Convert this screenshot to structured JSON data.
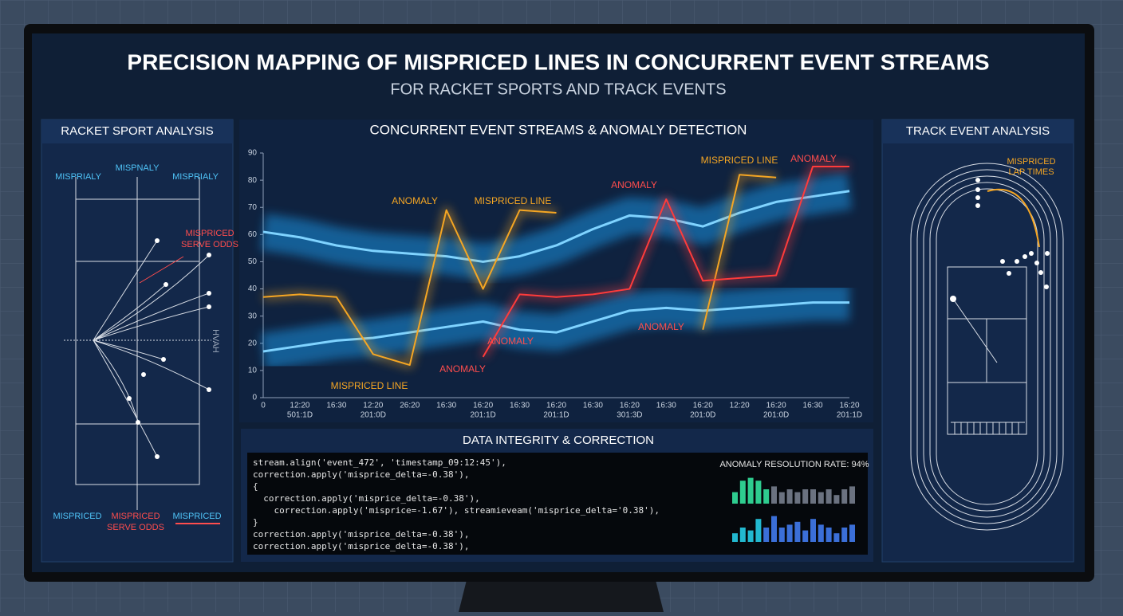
{
  "header": {
    "title": "PRECISION MAPPING OF MISPRICED LINES IN CONCURRENT EVENT STREAMS",
    "subtitle": "FOR RACKET SPORTS AND TRACK EVENTS"
  },
  "racket_panel": {
    "title": "RACKET SPORT ANALYSIS",
    "labels": [
      "MISPRIALY",
      "MISPNALY",
      "MISPRIALY",
      "MISPRICED",
      "SERVE ODDS",
      "HVAH",
      "MISPRICED",
      "MISPRICED",
      "SERVE ODDS",
      "MISPRICED"
    ]
  },
  "chart_data": {
    "type": "line",
    "title": "CONCURRENT EVENT STREAMS & ANOMALY DETECTION",
    "categories": [
      "0",
      "12:20",
      "16:30",
      "12:20",
      "26:20",
      "16:30",
      "16:20",
      "16:30",
      "16:20",
      "16:30",
      "16:20",
      "16:30",
      "16:20",
      "12:20",
      "16:20",
      "16:30",
      "16:20"
    ],
    "category_dates": [
      null,
      "501:1D",
      null,
      "201:0D",
      null,
      null,
      "201:1D",
      null,
      "201:1D",
      null,
      "301:3D",
      null,
      "201:0D",
      null,
      "201:0D",
      null,
      "201:1D"
    ],
    "ylim": [
      0,
      90
    ],
    "yticks": [
      0,
      10,
      20,
      30,
      40,
      50,
      60,
      70,
      80,
      90
    ],
    "series": [
      {
        "color": "#1ea8ff",
        "values": [
          61,
          59,
          56,
          54,
          53,
          52,
          50,
          52,
          56,
          62,
          67,
          66,
          63,
          68,
          72,
          74,
          76
        ]
      },
      {
        "color": "#1ea8ff",
        "values": [
          17,
          19,
          21,
          22,
          24,
          26,
          28,
          25,
          24,
          28,
          32,
          33,
          32,
          33,
          34,
          35,
          35
        ]
      },
      {
        "color": "#f5a623",
        "values": [
          37,
          38,
          37,
          16,
          12,
          69,
          40,
          69,
          68,
          null,
          null,
          null,
          25,
          82,
          81,
          null,
          null
        ]
      },
      {
        "color": "#ff3b3b",
        "values": [
          null,
          null,
          null,
          null,
          null,
          null,
          15,
          38,
          37,
          38,
          40,
          73,
          43,
          44,
          45,
          85,
          85
        ]
      }
    ],
    "annotations": [
      {
        "text": "ANOMALY",
        "color": "#f5a623"
      },
      {
        "text": "MISPRICED LINE",
        "color": "#f5a623"
      },
      {
        "text": "ANOMALY",
        "color": "#ff4d4d"
      },
      {
        "text": "MISPRICED LINE",
        "color": "#f5a623"
      },
      {
        "text": "ANOMALY",
        "color": "#ff4d4d"
      },
      {
        "text": "ANOMALY",
        "color": "#ff4d4d"
      },
      {
        "text": "ANOMALY",
        "color": "#ff4d4d"
      },
      {
        "text": "MISPRICED LINE",
        "color": "#f5a623"
      },
      {
        "text": "ANOMALY",
        "color": "#ff4d4d"
      }
    ]
  },
  "integrity_panel": {
    "title": "DATA INTEGRITY & CORRECTION",
    "code": [
      "stream.align('event_472', 'timestamp_09:12:45'),",
      "correction.apply('misprice_delta=-0.38'),",
      "{",
      "  correction.apply('misprice_delta=-0.38'),",
      "    correction.apply('misprice=-1.67'), streamieveam('misprice_delta='0.38'),",
      "}",
      "correction.apply('misprice_delta=-0.38'),",
      "correction.apply('misprice_delta=-0.38'),"
    ],
    "resolution_label": "ANOMALY RESOLUTION RATE: 94%",
    "bar_charts": [
      {
        "type": "bar",
        "values": [
          4,
          8,
          9,
          8,
          5,
          6,
          4,
          5,
          4,
          5,
          5,
          4,
          5,
          3,
          5,
          6
        ],
        "colors": [
          "#2ecc8f",
          "#2ecc8f",
          "#2ecc8f",
          "#2ecc8f",
          "#2ecc8f",
          "#6b7280",
          "#6b7280",
          "#6b7280",
          "#6b7280",
          "#6b7280",
          "#6b7280",
          "#6b7280",
          "#6b7280",
          "#6b7280",
          "#6b7280",
          "#6b7280"
        ]
      },
      {
        "type": "bar",
        "values": [
          3,
          5,
          4,
          8,
          5,
          9,
          5,
          6,
          7,
          4,
          8,
          6,
          5,
          3,
          5,
          6
        ],
        "colors": [
          "#22b8cf",
          "#22b8cf",
          "#22b8cf",
          "#22b8cf",
          "#3b6fd8",
          "#3b6fd8",
          "#3b6fd8",
          "#3b6fd8",
          "#3b6fd8",
          "#3b6fd8",
          "#3b6fd8",
          "#3b6fd8",
          "#3b6fd8",
          "#3b6fd8",
          "#3b6fd8",
          "#3b6fd8"
        ]
      }
    ]
  },
  "track_panel": {
    "title": "TRACK EVENT ANALYSIS",
    "label_lines": [
      "MISPRICED",
      "LAP TIMES"
    ]
  }
}
